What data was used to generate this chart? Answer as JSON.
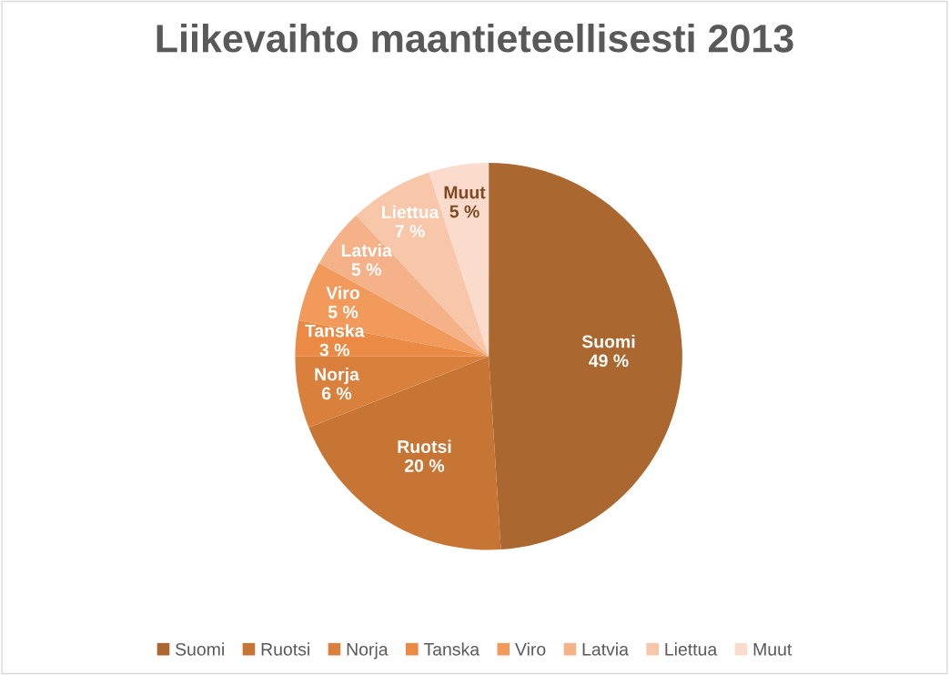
{
  "chart_data": {
    "type": "pie",
    "title": "Liikevaihto maantieteellisesti 2013",
    "categories": [
      "Suomi",
      "Ruotsi",
      "Norja",
      "Tanska",
      "Viro",
      "Latvia",
      "Liettua",
      "Muut"
    ],
    "values": [
      49,
      20,
      6,
      3,
      5,
      5,
      7,
      5
    ],
    "value_labels": [
      "49 %",
      "20 %",
      "6 %",
      "3 %",
      "5 %",
      "5 %",
      "7 %",
      "5 %"
    ],
    "colors": [
      "#aa672f",
      "#c67535",
      "#d9803d",
      "#ea8a45",
      "#f29a5c",
      "#f5b188",
      "#f8c6a8",
      "#fbdbcc"
    ],
    "legend": "bottom"
  }
}
